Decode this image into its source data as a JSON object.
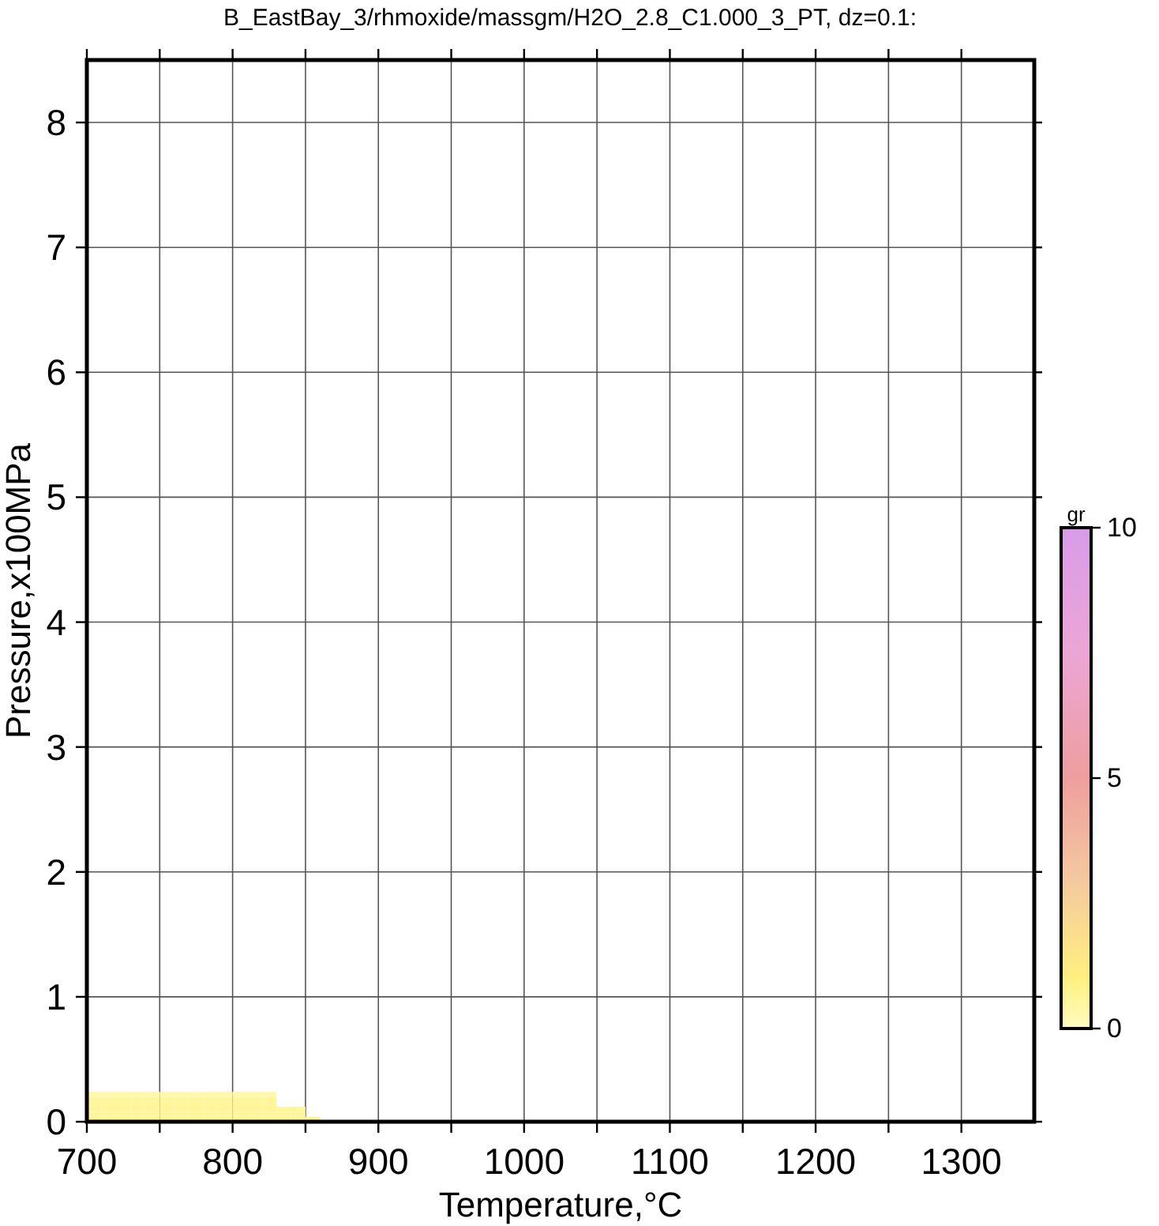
{
  "chart_data": {
    "type": "scatter",
    "title": "B_EastBay_3/rhmoxide/massgm/H2O_2.8_C1.000_3_PT, dz=0.1:",
    "xlabel": "Temperature,°C",
    "ylabel": "Pressure,x100MPa",
    "clabel": "gr",
    "x": [
      705,
      705,
      705,
      705,
      705,
      705,
      715,
      715,
      715,
      715,
      715,
      715,
      725,
      725,
      725,
      725,
      725,
      725,
      735,
      735,
      735,
      735,
      735,
      735,
      745,
      745,
      745,
      745,
      745,
      745,
      755,
      755,
      755,
      755,
      755,
      755,
      765,
      765,
      765,
      765,
      765,
      765,
      775,
      775,
      775,
      775,
      775,
      775,
      785,
      785,
      785,
      785,
      785,
      785,
      795,
      795,
      795,
      795,
      795,
      795,
      805,
      805,
      805,
      805,
      805,
      805,
      815,
      815,
      815,
      815,
      815,
      815,
      825,
      825,
      825,
      825,
      825,
      825,
      835,
      835,
      835,
      845,
      845,
      845,
      855
    ],
    "values": [
      0.02,
      0.06,
      0.1,
      0.14,
      0.18,
      0.22,
      0.02,
      0.06,
      0.1,
      0.14,
      0.18,
      0.22,
      0.02,
      0.06,
      0.1,
      0.14,
      0.18,
      0.22,
      0.02,
      0.06,
      0.1,
      0.14,
      0.18,
      0.22,
      0.02,
      0.06,
      0.1,
      0.14,
      0.18,
      0.22,
      0.02,
      0.06,
      0.1,
      0.14,
      0.18,
      0.22,
      0.02,
      0.06,
      0.1,
      0.14,
      0.18,
      0.22,
      0.02,
      0.06,
      0.1,
      0.14,
      0.18,
      0.22,
      0.02,
      0.06,
      0.1,
      0.14,
      0.18,
      0.22,
      0.02,
      0.06,
      0.1,
      0.14,
      0.18,
      0.22,
      0.02,
      0.06,
      0.1,
      0.14,
      0.18,
      0.22,
      0.02,
      0.06,
      0.1,
      0.14,
      0.18,
      0.22,
      0.02,
      0.06,
      0.1,
      0.14,
      0.18,
      0.22,
      0.02,
      0.06,
      0.1,
      0.02,
      0.06,
      0.1,
      0.02
    ],
    "cvalues": [
      0.6,
      0.6,
      0.6,
      0.6,
      0.6,
      0.3,
      0.6,
      0.6,
      0.6,
      0.6,
      0.6,
      0.3,
      0.6,
      0.6,
      0.6,
      0.6,
      0.6,
      0.3,
      0.6,
      0.6,
      0.6,
      0.6,
      0.6,
      0.3,
      0.6,
      0.6,
      0.6,
      0.6,
      0.6,
      0.3,
      0.6,
      0.6,
      0.6,
      0.6,
      0.6,
      0.3,
      0.6,
      0.6,
      0.6,
      0.6,
      0.6,
      0.3,
      0.6,
      0.6,
      0.6,
      0.6,
      0.6,
      0.3,
      0.6,
      0.6,
      0.6,
      0.6,
      0.6,
      0.3,
      0.6,
      0.6,
      0.6,
      0.6,
      0.6,
      0.3,
      0.6,
      0.6,
      0.6,
      0.6,
      0.6,
      0.3,
      0.6,
      0.6,
      0.6,
      0.6,
      0.6,
      0.3,
      0.6,
      0.6,
      0.6,
      0.6,
      0.6,
      0.3,
      0.6,
      0.6,
      0.6,
      0.6,
      0.6,
      0.6,
      0.6
    ],
    "marker": "square",
    "xlim": [
      700,
      1350
    ],
    "ylim": [
      0,
      8.5
    ],
    "xticks": [
      700,
      {
        "value": 750,
        "label": null
      },
      800,
      {
        "value": 850,
        "label": null
      },
      900,
      {
        "value": 950,
        "label": null
      },
      1000,
      {
        "value": 1050,
        "label": null
      },
      1100,
      {
        "value": 1150,
        "label": null
      },
      1200,
      {
        "value": 1250,
        "label": null
      },
      1300
    ],
    "yticks": [
      0,
      1,
      2,
      3,
      4,
      5,
      6,
      7,
      8
    ],
    "clim": [
      0,
      10
    ],
    "cticks": [
      0,
      5,
      10
    ],
    "grid": true
  }
}
